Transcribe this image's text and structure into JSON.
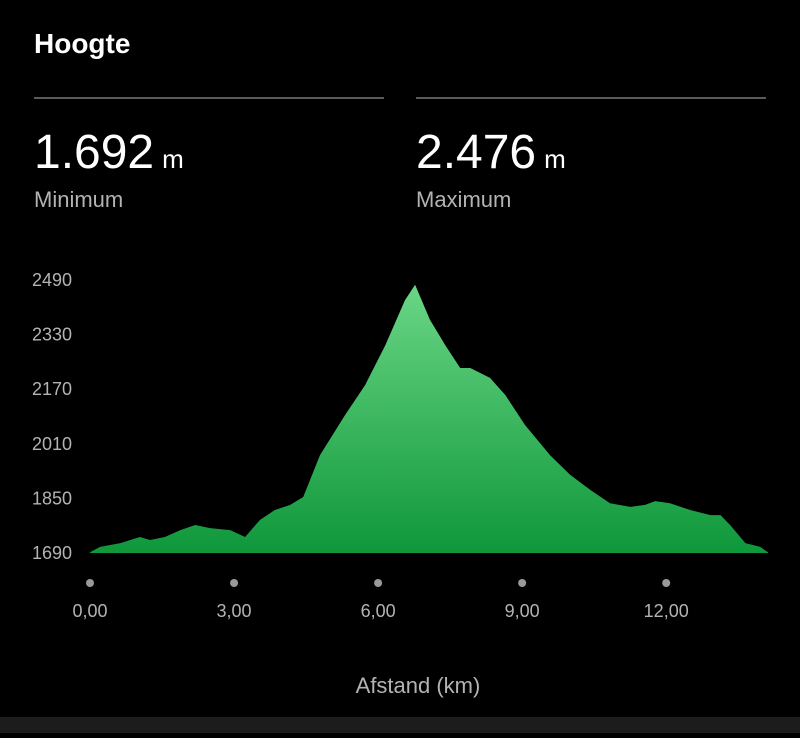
{
  "header": {
    "title": "Hoogte"
  },
  "stats": [
    {
      "value": "1.692",
      "unit": "m",
      "label": "Minimum"
    },
    {
      "value": "2.476",
      "unit": "m",
      "label": "Maximum"
    }
  ],
  "chart_data": {
    "type": "area",
    "x_label": "Afstand (km)",
    "x": [
      0,
      0.21,
      0.63,
      1.04,
      1.25,
      1.56,
      1.88,
      2.19,
      2.5,
      2.92,
      3.23,
      3.54,
      3.85,
      4.17,
      4.44,
      4.79,
      5.31,
      5.73,
      6.15,
      6.56,
      6.77,
      7.08,
      7.4,
      7.71,
      7.92,
      8.33,
      8.65,
      9.06,
      9.58,
      10.0,
      10.42,
      10.83,
      11.25,
      11.56,
      11.77,
      12.08,
      12.5,
      12.92,
      13.13,
      13.33,
      13.65,
      13.96,
      14.12
    ],
    "values": [
      1692,
      1708,
      1719,
      1737,
      1728,
      1737,
      1757,
      1772,
      1763,
      1757,
      1737,
      1787,
      1816,
      1831,
      1854,
      1977,
      2094,
      2182,
      2299,
      2431,
      2476,
      2373,
      2299,
      2232,
      2232,
      2203,
      2153,
      2065,
      1977,
      1919,
      1875,
      1836,
      1825,
      1831,
      1842,
      1836,
      1816,
      1801,
      1801,
      1772,
      1719,
      1708,
      1692
    ],
    "gradient": [
      "#6ad685",
      "#0f973b"
    ],
    "xlim": [
      0,
      14.12
    ],
    "ylim": [
      1690,
      2490
    ],
    "xticks": [
      {
        "value": 0,
        "label": "0,00"
      },
      {
        "value": 3,
        "label": "3,00"
      },
      {
        "value": 6,
        "label": "6,00"
      },
      {
        "value": 9,
        "label": "9,00"
      },
      {
        "value": 12,
        "label": "12,00"
      }
    ],
    "yticks": [
      1690,
      1850,
      2010,
      2170,
      2330,
      2490
    ]
  }
}
